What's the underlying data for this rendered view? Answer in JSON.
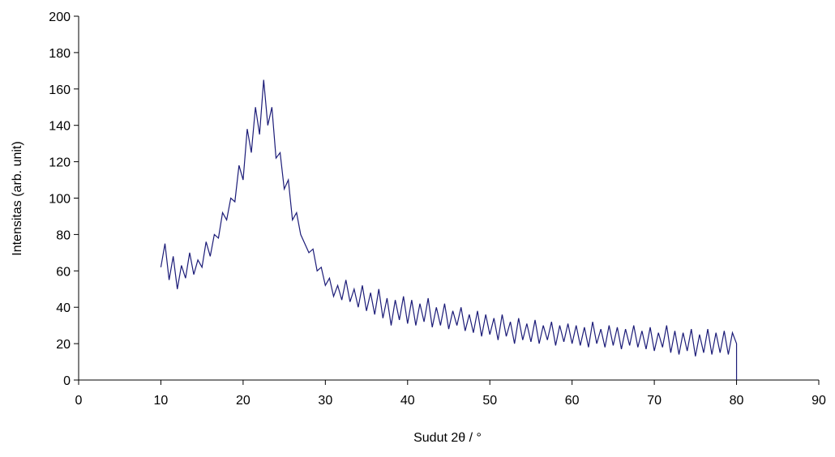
{
  "chart_data": {
    "type": "line",
    "xlabel": "Sudut 2θ / °",
    "ylabel": "Intensitas (arb. unit)",
    "xlim": [
      0,
      90
    ],
    "xticks": [
      0,
      10,
      20,
      30,
      40,
      50,
      60,
      70,
      80,
      90
    ],
    "ylim": [
      0,
      200
    ],
    "yticks": [
      0,
      20,
      40,
      60,
      80,
      100,
      120,
      140,
      160,
      180,
      200
    ],
    "series": [
      {
        "color": "#1c1c78",
        "x": [
          10,
          10.5,
          11,
          11.5,
          12,
          12.5,
          13,
          13.5,
          14,
          14.5,
          15,
          15.5,
          16,
          16.5,
          17,
          17.5,
          18,
          18.5,
          19,
          19.5,
          20,
          20.5,
          21,
          21.5,
          22,
          22.5,
          23,
          23.5,
          24,
          24.5,
          25,
          25.5,
          26,
          26.5,
          27,
          27.5,
          28,
          28.5,
          29,
          29.5,
          30,
          30.5,
          31,
          31.5,
          32,
          32.5,
          33,
          33.5,
          34,
          34.5,
          35,
          35.5,
          36,
          36.5,
          37,
          37.5,
          38,
          38.5,
          39,
          39.5,
          40,
          40.5,
          41,
          41.5,
          42,
          42.5,
          43,
          43.5,
          44,
          44.5,
          45,
          45.5,
          46,
          46.5,
          47,
          47.5,
          48,
          48.5,
          49,
          49.5,
          50,
          50.5,
          51,
          51.5,
          52,
          52.5,
          53,
          53.5,
          54,
          54.5,
          55,
          55.5,
          56,
          56.5,
          57,
          57.5,
          58,
          58.5,
          59,
          59.5,
          60,
          60.5,
          61,
          61.5,
          62,
          62.5,
          63,
          63.5,
          64,
          64.5,
          65,
          65.5,
          66,
          66.5,
          67,
          67.5,
          68,
          68.5,
          69,
          69.5,
          70,
          70.5,
          71,
          71.5,
          72,
          72.5,
          73,
          73.5,
          74,
          74.5,
          75,
          75.5,
          76,
          76.5,
          77,
          77.5,
          78,
          78.5,
          79,
          79.5,
          80,
          80
        ],
        "values": [
          62,
          75,
          55,
          68,
          50,
          63,
          56,
          70,
          58,
          66,
          62,
          76,
          68,
          80,
          78,
          92,
          88,
          100,
          98,
          118,
          110,
          138,
          125,
          150,
          135,
          165,
          140,
          150,
          122,
          125,
          105,
          110,
          88,
          92,
          80,
          75,
          70,
          72,
          60,
          62,
          52,
          56,
          46,
          52,
          44,
          55,
          43,
          50,
          40,
          52,
          38,
          48,
          36,
          50,
          34,
          45,
          30,
          44,
          33,
          46,
          31,
          44,
          30,
          42,
          32,
          45,
          29,
          40,
          30,
          42,
          28,
          38,
          30,
          40,
          27,
          36,
          26,
          38,
          24,
          36,
          25,
          34,
          22,
          36,
          24,
          32,
          20,
          34,
          22,
          31,
          21,
          33,
          20,
          30,
          22,
          32,
          19,
          30,
          21,
          31,
          20,
          30,
          19,
          29,
          18,
          32,
          20,
          28,
          18,
          30,
          19,
          29,
          17,
          28,
          19,
          30,
          18,
          27,
          17,
          29,
          16,
          26,
          18,
          30,
          15,
          27,
          14,
          26,
          16,
          28,
          13,
          25,
          15,
          28,
          14,
          26,
          15,
          27,
          14,
          26,
          20,
          0
        ]
      }
    ]
  }
}
